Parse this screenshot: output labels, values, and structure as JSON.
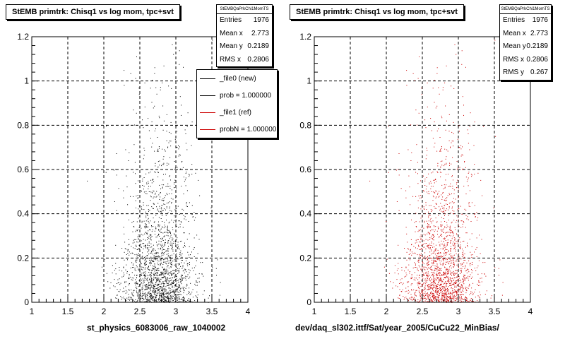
{
  "colors": {
    "left_series": "#000000",
    "right_series": "#cc0000",
    "legend_new": "#000000",
    "legend_ref": "#cc0000"
  },
  "chart_data": [
    {
      "type": "scatter",
      "title": "StEMB primtrk: Chisq1 vs log mom, tpc+svt",
      "xlabel": "st_physics_6083006_raw_1040002",
      "ylabel": "",
      "xlim": [
        1,
        4
      ],
      "ylim": [
        0,
        1.2
      ],
      "x_ticks": [
        "1",
        "1.5",
        "2",
        "2.5",
        "3",
        "3.5",
        "4"
      ],
      "y_ticks": [
        "0",
        "0.2",
        "0.4",
        "0.6",
        "0.8",
        "1",
        "1.2"
      ],
      "grid": true,
      "distribution": {
        "x_center": 2.773,
        "x_rms": 0.2806,
        "y_mean": 0.2189,
        "y_rms": 0.267,
        "entries": 1976
      }
    },
    {
      "type": "scatter",
      "title": "StEMB primtrk: Chisq1 vs log mom, tpc+svt",
      "xlabel": "dev/daq_sl302.ittf/Sat/year_2005/CuCu22_MinBias/",
      "ylabel": "",
      "xlim": [
        1,
        4
      ],
      "ylim": [
        0,
        1.2
      ],
      "x_ticks": [
        "1",
        "1.5",
        "2",
        "2.5",
        "3",
        "3.5",
        "4"
      ],
      "y_ticks": [
        "0",
        "0.2",
        "0.4",
        "0.6",
        "0.8",
        "1",
        "1.2"
      ],
      "grid": true,
      "distribution": {
        "x_center": 2.773,
        "x_rms": 0.2806,
        "y_mean": 0.2189,
        "y_rms": 0.267,
        "entries": 1976
      }
    }
  ],
  "left_stats": {
    "name": "StEMBQaPrkChi1MomTS",
    "rows": [
      {
        "label": "Entries",
        "value": "1976"
      },
      {
        "label": "Mean x",
        "value": "2.773"
      },
      {
        "label": "Mean y",
        "value": "0.2189"
      },
      {
        "label": "RMS x",
        "value": "0.2806"
      }
    ]
  },
  "right_stats": {
    "name": "StEMBQaPrkChi1MomTS",
    "rows": [
      {
        "label": "Entries",
        "value": "1976"
      },
      {
        "label": "Mean x",
        "value": "2.773"
      },
      {
        "label": "Mean y",
        "value": "0.2189"
      },
      {
        "label": "RMS x",
        "value": "0.2806"
      },
      {
        "label": "RMS y",
        "value": "0.267"
      }
    ]
  },
  "legend": {
    "items": [
      {
        "label": "_file0 (new)",
        "color": "#000000"
      },
      {
        "label": "prob = 1.000000",
        "color": "#000000"
      },
      {
        "label": "_file1 (ref)",
        "color": "#cc0000"
      },
      {
        "label": "probN = 1.000000",
        "color": "#cc0000"
      }
    ]
  }
}
